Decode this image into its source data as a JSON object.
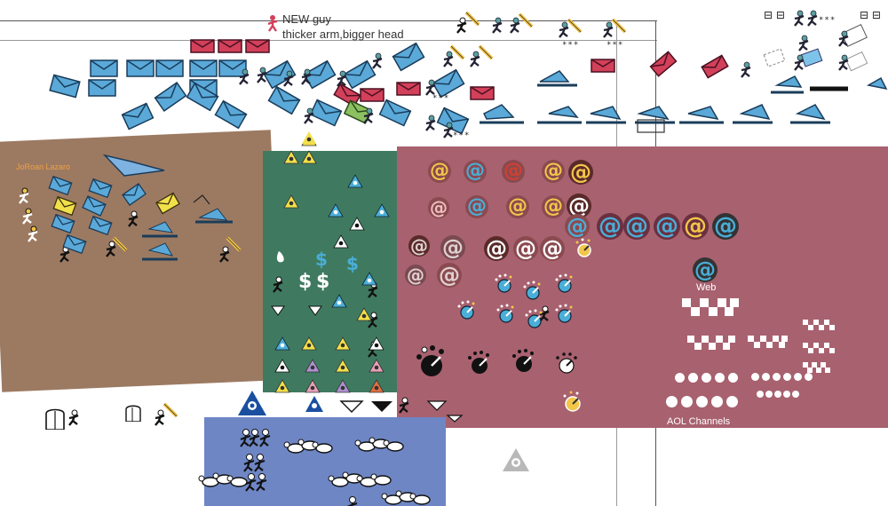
{
  "notes": {
    "line1": "NEW guy",
    "line2": "thicker arm,bigger head",
    "signature": "JoRoan Lazaro",
    "web_label": "Web",
    "channels_label": "AOL Channels",
    "stars": "***"
  },
  "colors": {
    "envelope_blue": "#5aa9d8",
    "envelope_red": "#d2405a",
    "envelope_yellow": "#f2e04a",
    "envelope_green": "#8cc060",
    "panel_brown": "#9c7a62",
    "panel_green": "#3f7a60",
    "panel_rose": "#a8616f",
    "panel_blue": "#6e86c4",
    "at_yellow": "#f3c64a",
    "at_blue": "#4aaed8"
  },
  "icons": {
    "envelope": "envelope-icon",
    "running_man": "running-man-icon",
    "at_sign": "at-sign-icon",
    "aol_triangle": "aol-triangle-icon",
    "dollar": "dollar-icon",
    "dial": "dial-icon",
    "grid_block": "channel-grid-icon",
    "dot_row": "channel-dots-icon"
  },
  "glyphs": {
    "at": "@",
    "dollar": "$"
  }
}
